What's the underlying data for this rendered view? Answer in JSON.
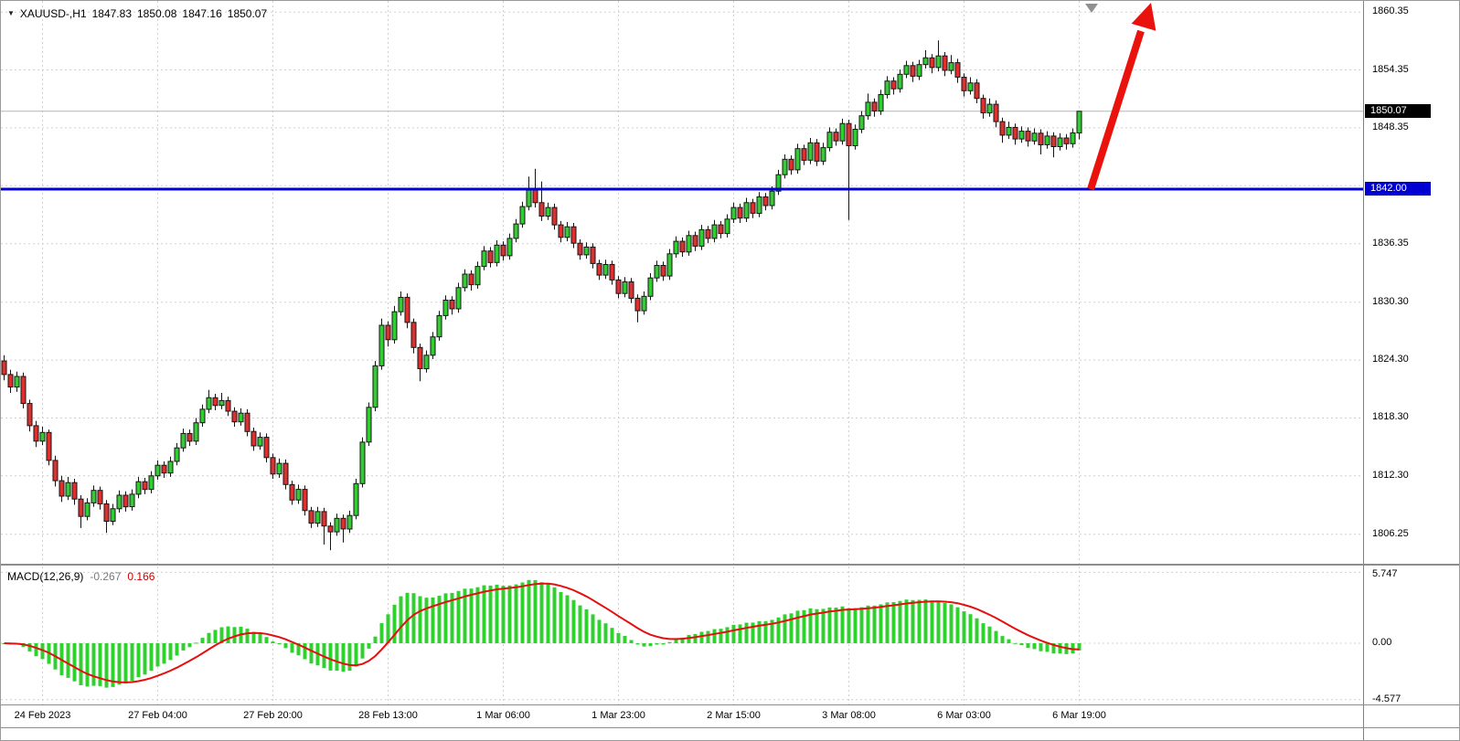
{
  "colors": {
    "bull_fill": "#32cd32",
    "bear_fill": "#df3030",
    "candle_stroke": "#151515",
    "grid": "#d0d0d0",
    "bid_line": "#b5b5b5",
    "hline": "#0000d2",
    "arrow": "#ea120c",
    "histogram": "#2fd12f",
    "signal": "#e60f0f",
    "bid_badge_bg": "#000000",
    "hline_badge_bg": "#0000d2"
  },
  "quote": {
    "icon": "▼",
    "symbol_period": "XAUUSD-,H1",
    "open": "1847.83",
    "high": "1850.08",
    "low": "1847.16",
    "close": "1850.07"
  },
  "indicator": {
    "label": "MACD(12,26,9)",
    "macd_value": "-0.267",
    "signal_value": "0.166"
  },
  "price_axis": {
    "labels": [
      1860.35,
      1854.35,
      1848.35,
      1836.35,
      1830.3,
      1824.3,
      1818.3,
      1812.3,
      1806.25
    ],
    "gridlines": [
      1860.35,
      1854.35,
      1848.35,
      1842.35,
      1836.35,
      1830.3,
      1824.3,
      1818.3,
      1812.3,
      1806.25
    ],
    "bid_badge": "1850.07",
    "hline_badge": "1842.00"
  },
  "chart_data": [
    {
      "type": "candlestick",
      "symbol": "XAUUSD-",
      "timeframe": "H1",
      "ylim": [
        1803.2,
        1861.5
      ],
      "bid_price": 1850.07,
      "overlays": {
        "horizontal_line_price": 1842.0,
        "trend_arrow": {
          "direction": "up"
        }
      },
      "x_axis": {
        "labels": [
          "24 Feb 2023",
          "27 Feb 04:00",
          "27 Feb 20:00",
          "28 Feb 13:00",
          "1 Mar 06:00",
          "1 Mar 23:00",
          "2 Mar 15:00",
          "3 Mar 08:00",
          "6 Mar 03:00",
          "6 Mar 19:00"
        ],
        "candle_index": [
          6,
          24,
          42,
          60,
          78,
          96,
          114,
          132,
          150,
          168
        ]
      },
      "candles": [
        [
          1824.2,
          1824.8,
          1822.2,
          1822.8
        ],
        [
          1822.8,
          1823.3,
          1820.9,
          1821.5
        ],
        [
          1821.5,
          1823.1,
          1821.0,
          1822.6
        ],
        [
          1822.6,
          1823.0,
          1819.3,
          1819.8
        ],
        [
          1819.8,
          1820.2,
          1816.9,
          1817.5
        ],
        [
          1817.5,
          1818.0,
          1815.3,
          1815.9
        ],
        [
          1815.9,
          1817.4,
          1815.5,
          1816.8
        ],
        [
          1816.8,
          1817.1,
          1813.4,
          1813.9
        ],
        [
          1813.9,
          1814.4,
          1811.2,
          1811.8
        ],
        [
          1811.8,
          1812.3,
          1809.6,
          1810.2
        ],
        [
          1810.2,
          1812.2,
          1809.8,
          1811.6
        ],
        [
          1811.6,
          1812.0,
          1809.3,
          1809.9
        ],
        [
          1809.9,
          1810.3,
          1806.9,
          1808.1
        ],
        [
          1808.1,
          1810.0,
          1807.7,
          1809.5
        ],
        [
          1809.5,
          1811.3,
          1809.1,
          1810.8
        ],
        [
          1810.8,
          1811.2,
          1808.8,
          1809.4
        ],
        [
          1809.4,
          1809.8,
          1806.4,
          1807.6
        ],
        [
          1807.6,
          1809.4,
          1807.2,
          1808.9
        ],
        [
          1808.9,
          1810.8,
          1808.5,
          1810.3
        ],
        [
          1810.3,
          1810.7,
          1808.6,
          1809.1
        ],
        [
          1809.1,
          1810.9,
          1808.7,
          1810.4
        ],
        [
          1810.4,
          1812.2,
          1810.0,
          1811.7
        ],
        [
          1811.7,
          1812.1,
          1810.4,
          1810.9
        ],
        [
          1810.9,
          1812.8,
          1810.5,
          1812.3
        ],
        [
          1812.3,
          1813.9,
          1811.9,
          1813.4
        ],
        [
          1813.4,
          1813.8,
          1812.1,
          1812.6
        ],
        [
          1812.6,
          1814.3,
          1812.2,
          1813.8
        ],
        [
          1813.8,
          1815.7,
          1813.4,
          1815.2
        ],
        [
          1815.2,
          1817.2,
          1814.8,
          1816.7
        ],
        [
          1816.7,
          1817.1,
          1815.4,
          1815.9
        ],
        [
          1815.9,
          1818.3,
          1815.5,
          1817.8
        ],
        [
          1817.8,
          1819.7,
          1817.4,
          1819.2
        ],
        [
          1819.2,
          1821.2,
          1818.8,
          1820.4
        ],
        [
          1820.4,
          1820.8,
          1819.1,
          1819.6
        ],
        [
          1819.6,
          1820.9,
          1819.2,
          1820.1
        ],
        [
          1820.1,
          1820.5,
          1818.5,
          1819.0
        ],
        [
          1819.0,
          1819.4,
          1817.4,
          1817.9
        ],
        [
          1817.9,
          1819.3,
          1817.5,
          1818.8
        ],
        [
          1818.8,
          1819.2,
          1816.4,
          1816.9
        ],
        [
          1816.9,
          1817.3,
          1814.9,
          1815.4
        ],
        [
          1815.4,
          1816.8,
          1815.0,
          1816.3
        ],
        [
          1816.3,
          1816.7,
          1813.7,
          1814.2
        ],
        [
          1814.2,
          1814.6,
          1812.0,
          1812.5
        ],
        [
          1812.5,
          1814.1,
          1812.1,
          1813.6
        ],
        [
          1813.6,
          1814.0,
          1810.9,
          1811.4
        ],
        [
          1811.4,
          1811.8,
          1809.3,
          1809.8
        ],
        [
          1809.8,
          1811.4,
          1809.4,
          1810.9
        ],
        [
          1810.9,
          1811.3,
          1808.2,
          1808.7
        ],
        [
          1808.7,
          1809.1,
          1806.9,
          1807.4
        ],
        [
          1807.4,
          1809.1,
          1807.0,
          1808.6
        ],
        [
          1808.6,
          1809.0,
          1805.2,
          1807.1
        ],
        [
          1807.1,
          1807.5,
          1804.6,
          1806.5
        ],
        [
          1806.5,
          1808.4,
          1806.1,
          1807.9
        ],
        [
          1807.9,
          1808.3,
          1805.4,
          1806.8
        ],
        [
          1806.8,
          1808.7,
          1806.4,
          1808.2
        ],
        [
          1808.2,
          1812.0,
          1807.8,
          1811.5
        ],
        [
          1811.5,
          1816.3,
          1811.1,
          1815.8
        ],
        [
          1815.8,
          1819.9,
          1815.4,
          1819.4
        ],
        [
          1819.4,
          1824.2,
          1819.0,
          1823.7
        ],
        [
          1823.7,
          1828.6,
          1823.3,
          1827.9
        ],
        [
          1827.9,
          1828.3,
          1825.7,
          1826.4
        ],
        [
          1826.4,
          1829.9,
          1826.0,
          1829.3
        ],
        [
          1829.3,
          1831.4,
          1828.9,
          1830.8
        ],
        [
          1830.8,
          1831.2,
          1827.6,
          1828.2
        ],
        [
          1828.2,
          1828.6,
          1825.0,
          1825.6
        ],
        [
          1825.6,
          1826.0,
          1822.1,
          1823.4
        ],
        [
          1823.4,
          1825.3,
          1823.0,
          1824.8
        ],
        [
          1824.8,
          1827.2,
          1824.4,
          1826.7
        ],
        [
          1826.7,
          1829.4,
          1826.3,
          1828.9
        ],
        [
          1828.9,
          1831.0,
          1828.5,
          1830.5
        ],
        [
          1830.5,
          1830.9,
          1829.0,
          1829.6
        ],
        [
          1829.6,
          1832.3,
          1829.2,
          1831.8
        ],
        [
          1831.8,
          1833.7,
          1831.4,
          1833.2
        ],
        [
          1833.2,
          1833.6,
          1831.5,
          1832.1
        ],
        [
          1832.1,
          1834.5,
          1831.7,
          1834.0
        ],
        [
          1834.0,
          1836.1,
          1833.6,
          1835.6
        ],
        [
          1835.6,
          1836.0,
          1833.9,
          1834.4
        ],
        [
          1834.4,
          1836.7,
          1834.0,
          1836.2
        ],
        [
          1836.2,
          1836.6,
          1834.6,
          1835.1
        ],
        [
          1835.1,
          1837.4,
          1834.7,
          1836.9
        ],
        [
          1836.9,
          1838.9,
          1836.5,
          1838.4
        ],
        [
          1838.4,
          1840.7,
          1838.0,
          1840.2
        ],
        [
          1840.2,
          1843.3,
          1839.8,
          1841.9
        ],
        [
          1841.9,
          1844.1,
          1840.1,
          1840.6
        ],
        [
          1840.6,
          1842.8,
          1838.7,
          1839.2
        ],
        [
          1839.2,
          1840.6,
          1838.8,
          1840.1
        ],
        [
          1840.1,
          1840.5,
          1837.8,
          1838.3
        ],
        [
          1838.3,
          1838.7,
          1836.5,
          1837.0
        ],
        [
          1837.0,
          1838.6,
          1836.6,
          1838.1
        ],
        [
          1838.1,
          1838.5,
          1835.9,
          1836.4
        ],
        [
          1836.4,
          1836.8,
          1834.7,
          1835.2
        ],
        [
          1835.2,
          1836.5,
          1834.8,
          1836.0
        ],
        [
          1836.0,
          1836.4,
          1833.8,
          1834.3
        ],
        [
          1834.3,
          1834.7,
          1832.6,
          1833.1
        ],
        [
          1833.1,
          1834.7,
          1832.7,
          1834.2
        ],
        [
          1834.2,
          1834.6,
          1832.1,
          1832.6
        ],
        [
          1832.6,
          1833.0,
          1830.7,
          1831.2
        ],
        [
          1831.2,
          1832.9,
          1830.8,
          1832.4
        ],
        [
          1832.4,
          1832.8,
          1830.2,
          1830.7
        ],
        [
          1830.7,
          1831.1,
          1828.2,
          1829.4
        ],
        [
          1829.4,
          1831.4,
          1829.0,
          1830.9
        ],
        [
          1830.9,
          1833.3,
          1830.5,
          1832.8
        ],
        [
          1832.8,
          1834.6,
          1832.4,
          1834.1
        ],
        [
          1834.1,
          1834.5,
          1832.5,
          1833.0
        ],
        [
          1833.0,
          1835.8,
          1832.6,
          1835.3
        ],
        [
          1835.3,
          1837.1,
          1834.9,
          1836.6
        ],
        [
          1836.6,
          1837.0,
          1835.0,
          1835.5
        ],
        [
          1835.5,
          1837.7,
          1835.1,
          1837.2
        ],
        [
          1837.2,
          1837.6,
          1835.6,
          1836.1
        ],
        [
          1836.1,
          1838.3,
          1835.7,
          1837.8
        ],
        [
          1837.8,
          1838.2,
          1836.4,
          1836.9
        ],
        [
          1836.9,
          1838.8,
          1836.5,
          1838.3
        ],
        [
          1838.3,
          1838.7,
          1836.9,
          1837.4
        ],
        [
          1837.4,
          1839.4,
          1837.0,
          1838.9
        ],
        [
          1838.9,
          1840.6,
          1838.5,
          1840.1
        ],
        [
          1840.1,
          1840.5,
          1838.5,
          1839.0
        ],
        [
          1839.0,
          1841.1,
          1838.6,
          1840.6
        ],
        [
          1840.6,
          1841.0,
          1839.0,
          1839.5
        ],
        [
          1839.5,
          1841.7,
          1839.1,
          1841.2
        ],
        [
          1841.2,
          1841.6,
          1839.8,
          1840.3
        ],
        [
          1840.3,
          1842.3,
          1839.9,
          1841.8
        ],
        [
          1841.8,
          1844.0,
          1841.4,
          1843.5
        ],
        [
          1843.5,
          1845.6,
          1843.1,
          1845.1
        ],
        [
          1845.1,
          1845.5,
          1843.5,
          1844.0
        ],
        [
          1844.0,
          1846.7,
          1843.6,
          1846.2
        ],
        [
          1846.2,
          1846.6,
          1844.5,
          1845.0
        ],
        [
          1845.0,
          1847.3,
          1844.6,
          1846.8
        ],
        [
          1846.8,
          1847.2,
          1844.4,
          1844.9
        ],
        [
          1844.9,
          1846.8,
          1844.5,
          1846.3
        ],
        [
          1846.3,
          1848.4,
          1845.9,
          1847.9
        ],
        [
          1847.9,
          1848.3,
          1846.5,
          1847.0
        ],
        [
          1847.0,
          1849.3,
          1846.6,
          1848.8
        ],
        [
          1848.8,
          1849.2,
          1838.8,
          1846.5
        ],
        [
          1846.5,
          1848.7,
          1846.1,
          1848.2
        ],
        [
          1848.2,
          1850.1,
          1847.8,
          1849.6
        ],
        [
          1849.6,
          1851.9,
          1849.2,
          1851.0
        ],
        [
          1851.0,
          1851.4,
          1849.5,
          1850.1
        ],
        [
          1850.1,
          1852.3,
          1849.7,
          1851.8
        ],
        [
          1851.8,
          1853.7,
          1851.4,
          1853.2
        ],
        [
          1853.2,
          1853.6,
          1851.8,
          1852.4
        ],
        [
          1852.4,
          1854.4,
          1852.0,
          1853.9
        ],
        [
          1853.9,
          1855.3,
          1853.5,
          1854.8
        ],
        [
          1854.8,
          1855.2,
          1853.1,
          1853.7
        ],
        [
          1853.7,
          1855.4,
          1853.3,
          1854.9
        ],
        [
          1854.9,
          1856.4,
          1854.5,
          1855.6
        ],
        [
          1855.6,
          1856.0,
          1854.0,
          1854.6
        ],
        [
          1854.6,
          1857.4,
          1854.2,
          1855.8
        ],
        [
          1855.8,
          1856.2,
          1853.7,
          1854.3
        ],
        [
          1854.3,
          1855.9,
          1853.9,
          1855.1
        ],
        [
          1855.1,
          1855.5,
          1853.0,
          1853.6
        ],
        [
          1853.6,
          1854.0,
          1851.6,
          1852.2
        ],
        [
          1852.2,
          1853.6,
          1851.8,
          1853.0
        ],
        [
          1853.0,
          1853.4,
          1850.9,
          1851.4
        ],
        [
          1851.4,
          1851.8,
          1849.3,
          1849.9
        ],
        [
          1849.9,
          1851.4,
          1849.5,
          1850.8
        ],
        [
          1850.8,
          1851.2,
          1848.4,
          1849.0
        ],
        [
          1849.0,
          1849.4,
          1846.8,
          1847.6
        ],
        [
          1847.6,
          1849.0,
          1847.2,
          1848.4
        ],
        [
          1848.4,
          1848.8,
          1846.6,
          1847.2
        ],
        [
          1847.2,
          1848.5,
          1846.8,
          1848.0
        ],
        [
          1848.0,
          1848.4,
          1846.4,
          1847.0
        ],
        [
          1847.0,
          1848.3,
          1846.6,
          1847.8
        ],
        [
          1847.8,
          1848.2,
          1845.6,
          1846.6
        ],
        [
          1846.6,
          1848.0,
          1846.2,
          1847.5
        ],
        [
          1847.5,
          1847.9,
          1845.3,
          1846.4
        ],
        [
          1846.4,
          1847.8,
          1846.0,
          1847.3
        ],
        [
          1847.3,
          1847.7,
          1846.1,
          1846.7
        ],
        [
          1846.7,
          1848.3,
          1846.3,
          1847.83
        ],
        [
          1847.83,
          1850.08,
          1847.16,
          1850.07
        ]
      ]
    },
    {
      "type": "macd",
      "params": [
        12,
        26,
        9
      ],
      "current_macd": -0.267,
      "current_signal": 0.166,
      "axis_labels": [
        "5.747",
        "0.00",
        "-4.577"
      ],
      "axis_values": [
        5.747,
        0,
        -4.577
      ]
    }
  ]
}
